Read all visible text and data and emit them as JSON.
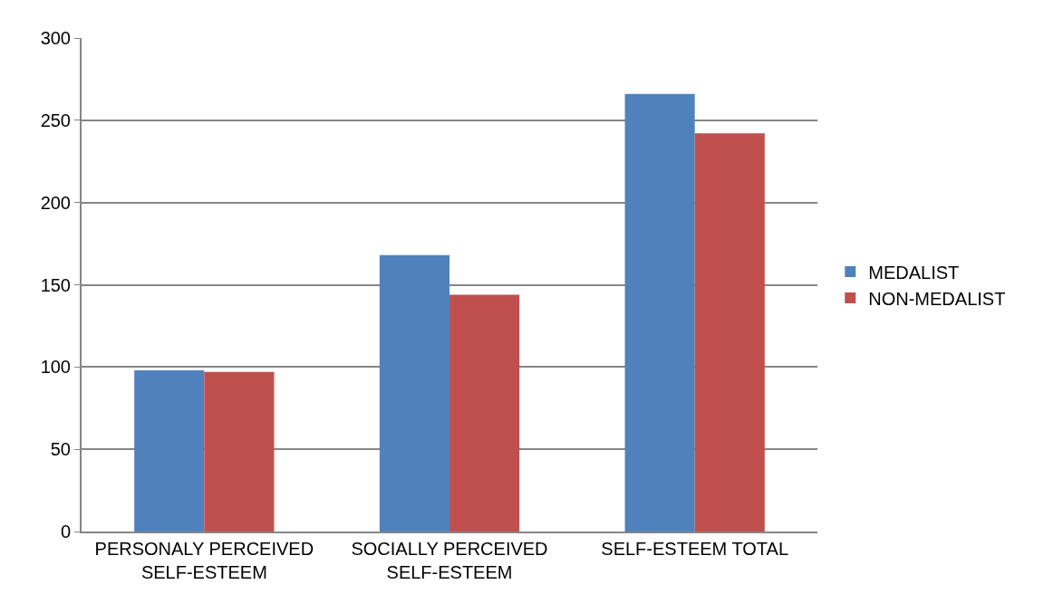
{
  "chart_data": {
    "type": "bar",
    "categories": [
      "PERSONALY PERCEIVED\nSELF-ESTEEM",
      "SOCIALLY PERCEIVED\nSELF-ESTEEM",
      "SELF-ESTEEM TOTAL"
    ],
    "series": [
      {
        "name": "MEDALIST",
        "color": "#4f81bd",
        "values": [
          98,
          168,
          266
        ]
      },
      {
        "name": "NON-MEDALIST",
        "color": "#c0504d",
        "values": [
          97,
          144,
          242
        ]
      }
    ],
    "ylim": [
      0,
      300
    ],
    "yticks": [
      0,
      50,
      100,
      150,
      200,
      250,
      300
    ],
    "grid": "y",
    "legend": "right"
  }
}
